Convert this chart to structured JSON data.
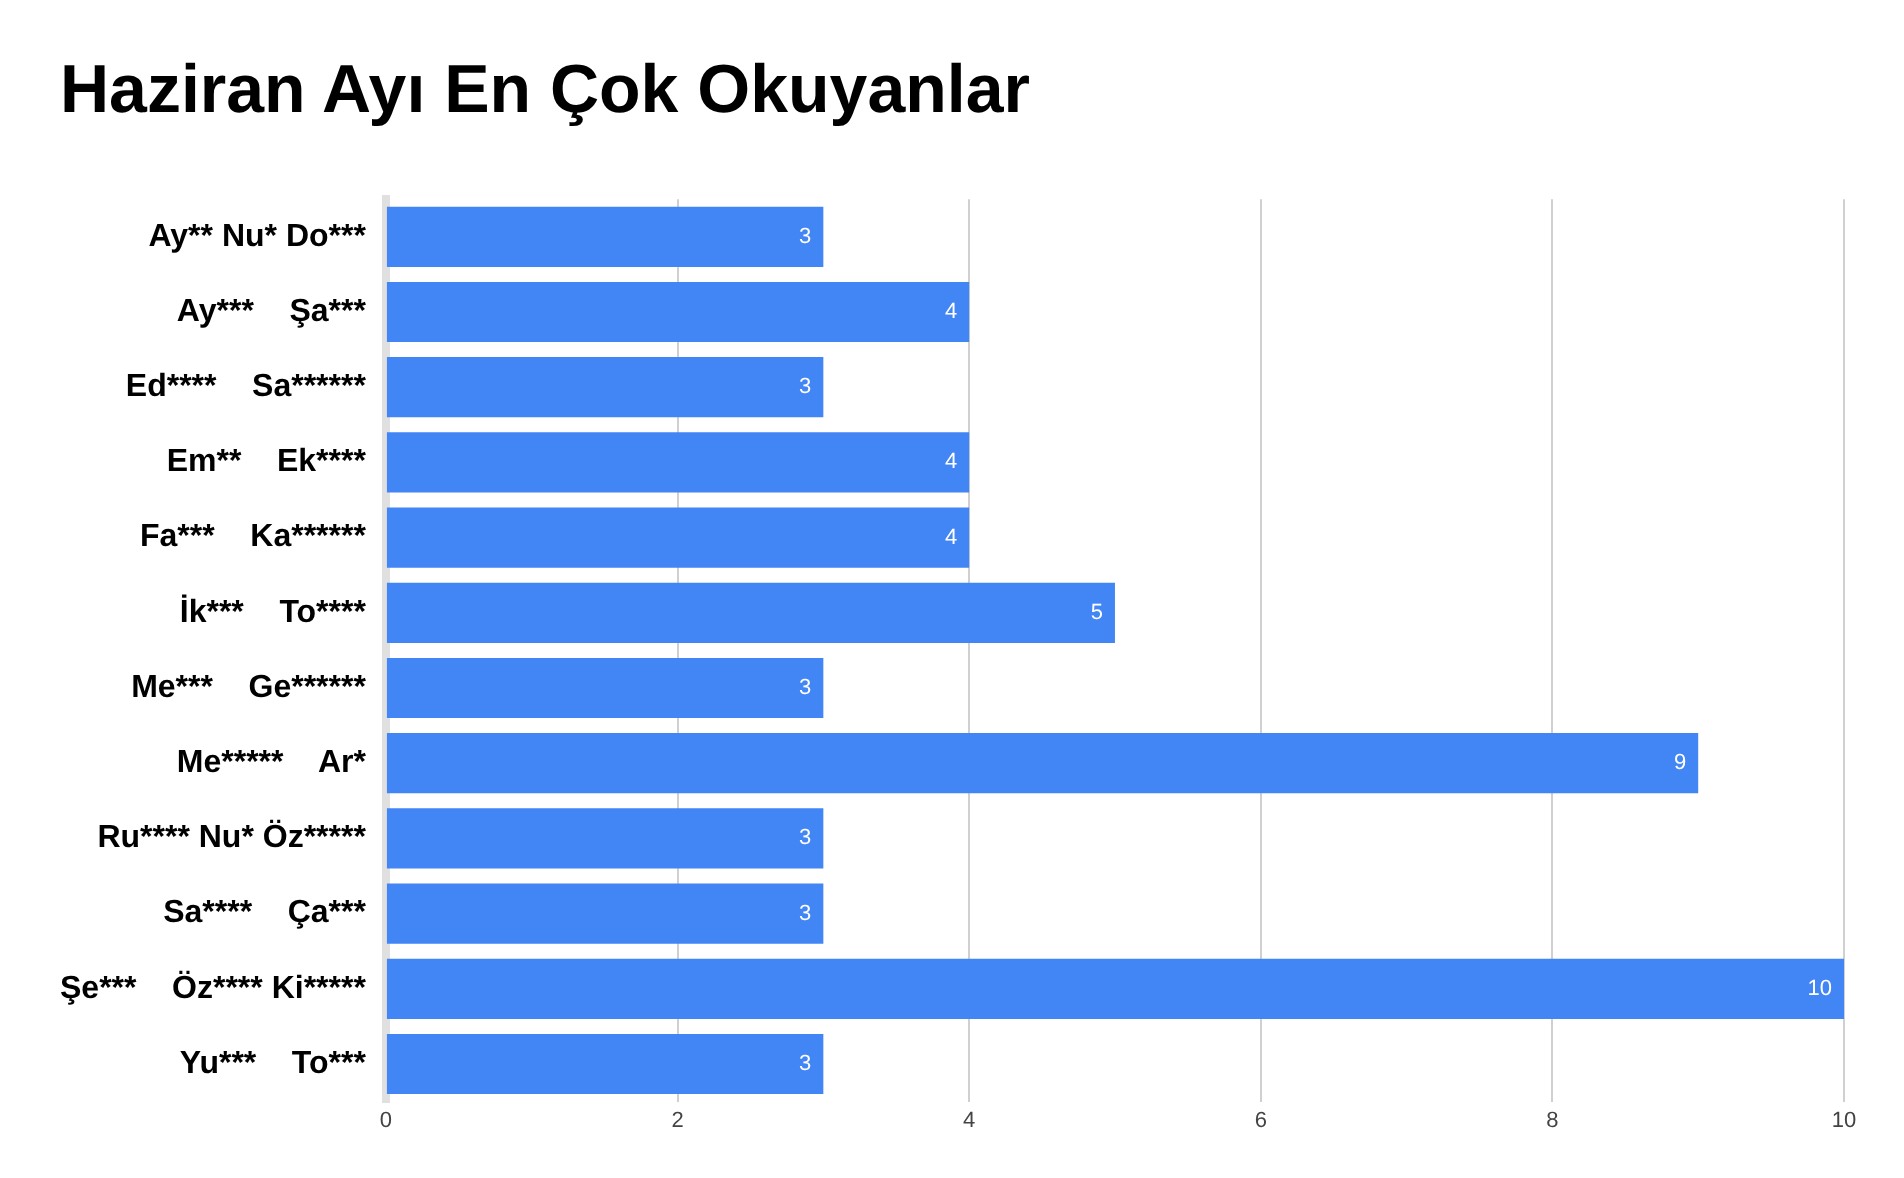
{
  "chart_data": {
    "type": "bar",
    "orientation": "horizontal",
    "title": "Haziran Ayı En Çok Okuyanlar",
    "categories": [
      "Ay** Nu* Do***",
      "Ay***    Şa***",
      "Ed****    Sa******",
      "Em**    Ek****",
      "Fa***    Ka******",
      "İk***    To****",
      "Me***    Ge******",
      "Me*****    Ar*",
      "Ru**** Nu* Öz*****",
      "Sa****    Ça***",
      "Şe***    Öz**** Ki*****",
      "Yu***    To***"
    ],
    "values": [
      3,
      4,
      3,
      4,
      4,
      5,
      3,
      9,
      3,
      3,
      10,
      3
    ],
    "color": "#4285f4",
    "xlim": [
      0,
      10
    ],
    "xticks": [
      0,
      2,
      4,
      6,
      8,
      10
    ],
    "grid": "x",
    "data_labels": true
  }
}
